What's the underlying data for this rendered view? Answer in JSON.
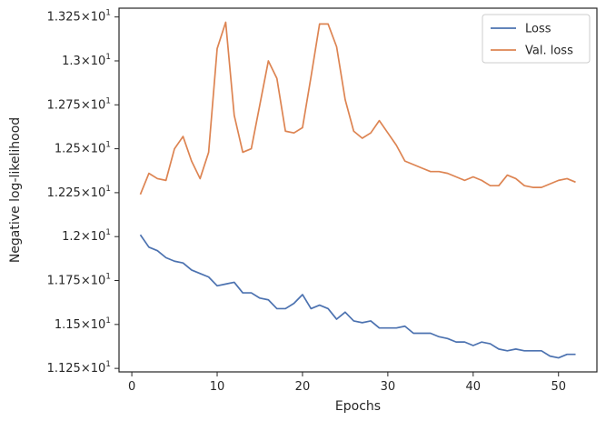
{
  "chart_data": {
    "type": "line",
    "title": "",
    "xlabel": "Epochs",
    "ylabel": "Negative log-likelihood",
    "xlim": [
      -1.5,
      54.5
    ],
    "ylim": [
      11.23,
      13.3
    ],
    "xticks": [
      0,
      10,
      20,
      30,
      40,
      50
    ],
    "yticks": [
      {
        "value": 11.25,
        "mant": "1.125"
      },
      {
        "value": 11.5,
        "mant": "1.15"
      },
      {
        "value": 11.75,
        "mant": "1.175"
      },
      {
        "value": 12.0,
        "mant": "1.2"
      },
      {
        "value": 12.25,
        "mant": "1.225"
      },
      {
        "value": 12.5,
        "mant": "1.25"
      },
      {
        "value": 12.75,
        "mant": "1.275"
      },
      {
        "value": 13.0,
        "mant": "1.3"
      },
      {
        "value": 13.25,
        "mant": "1.325"
      }
    ],
    "ytick_base": "10",
    "ytick_exp": "1",
    "grid": false,
    "legend_position": "top-right",
    "x": [
      1,
      2,
      3,
      4,
      5,
      6,
      7,
      8,
      9,
      10,
      11,
      12,
      13,
      14,
      15,
      16,
      17,
      18,
      19,
      20,
      21,
      22,
      23,
      24,
      25,
      26,
      27,
      28,
      29,
      30,
      31,
      32,
      33,
      34,
      35,
      36,
      37,
      38,
      39,
      40,
      41,
      42,
      43,
      44,
      45,
      46,
      47,
      48,
      49,
      50,
      51,
      52
    ],
    "series": [
      {
        "name": "Loss",
        "color": "#4c72b0",
        "values": [
          12.01,
          11.94,
          11.92,
          11.88,
          11.86,
          11.85,
          11.81,
          11.79,
          11.77,
          11.72,
          11.73,
          11.74,
          11.68,
          11.68,
          11.65,
          11.64,
          11.59,
          11.59,
          11.62,
          11.67,
          11.59,
          11.61,
          11.59,
          11.53,
          11.57,
          11.52,
          11.51,
          11.52,
          11.48,
          11.48,
          11.48,
          11.49,
          11.45,
          11.45,
          11.45,
          11.43,
          11.42,
          11.4,
          11.4,
          11.38,
          11.4,
          11.39,
          11.36,
          11.35,
          11.36,
          11.35,
          11.35,
          11.35,
          11.32,
          11.31,
          11.33,
          11.33
        ]
      },
      {
        "name": "Val. loss",
        "color": "#dd8452",
        "values": [
          12.24,
          12.36,
          12.33,
          12.32,
          12.5,
          12.57,
          12.43,
          12.33,
          12.48,
          13.07,
          13.22,
          12.69,
          12.48,
          12.5,
          12.75,
          13.0,
          12.9,
          12.6,
          12.59,
          12.62,
          12.91,
          13.21,
          13.21,
          13.08,
          12.78,
          12.6,
          12.56,
          12.59,
          12.66,
          12.59,
          12.52,
          12.43,
          12.41,
          12.39,
          12.37,
          12.37,
          12.36,
          12.34,
          12.32,
          12.34,
          12.32,
          12.29,
          12.29,
          12.35,
          12.33,
          12.29,
          12.28,
          12.28,
          12.3,
          12.32,
          12.33,
          12.31
        ]
      }
    ]
  }
}
